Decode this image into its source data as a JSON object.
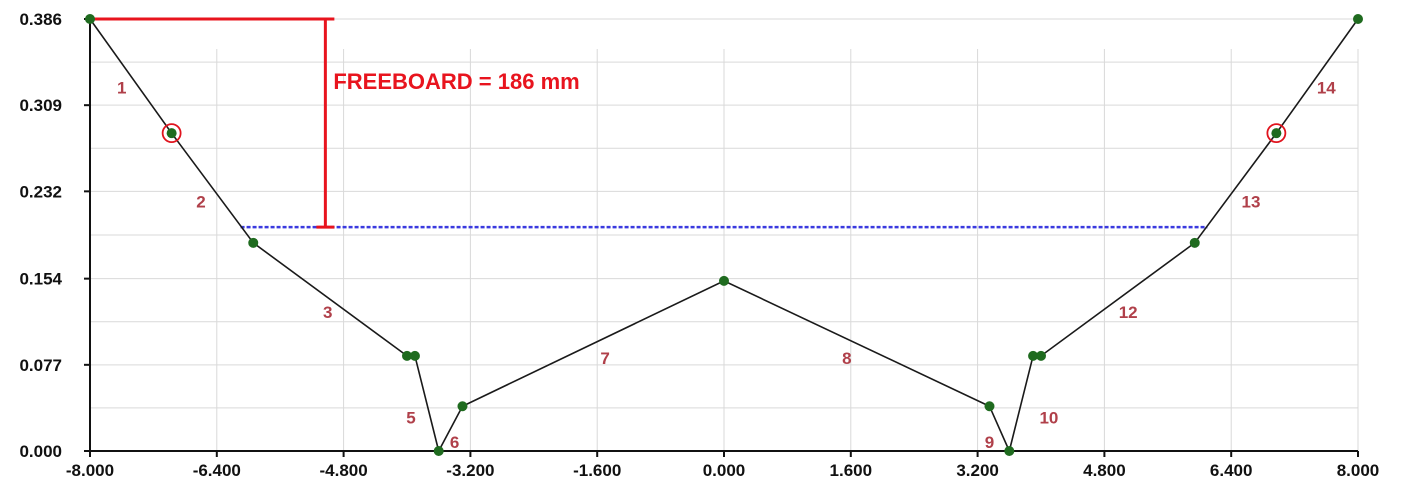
{
  "chart_data": {
    "type": "line",
    "xlim": [
      -8.0,
      8.0
    ],
    "ylim": [
      0.0,
      0.386
    ],
    "x_ticks": [
      -8.0,
      -6.4,
      -4.8,
      -3.2,
      -1.6,
      0.0,
      1.6,
      3.2,
      4.8,
      6.4,
      8.0
    ],
    "x_tick_labels": [
      "-8.000",
      "-6.400",
      "-4.800",
      "-3.200",
      "-1.600",
      "0.000",
      "1.600",
      "3.200",
      "4.800",
      "6.400",
      "8.000"
    ],
    "y_ticks": [
      0.0,
      0.077,
      0.154,
      0.232,
      0.309,
      0.386
    ],
    "y_tick_labels": [
      "0.000",
      "0.077",
      "0.154",
      "0.232",
      "0.309",
      "0.386"
    ],
    "grid": true,
    "profile": {
      "x": [
        -8.0,
        -6.97,
        -5.94,
        -4.0,
        -3.9,
        -3.6,
        -3.3,
        0.0,
        3.35,
        3.6,
        3.9,
        4.0,
        5.94,
        6.97,
        8.0
      ],
      "y": [
        0.386,
        0.284,
        0.186,
        0.085,
        0.085,
        0.0,
        0.04,
        0.152,
        0.04,
        0.0,
        0.085,
        0.085,
        0.186,
        0.284,
        0.386
      ]
    },
    "highlighted_points": [
      {
        "x": -6.97,
        "y": 0.284
      },
      {
        "x": 6.97,
        "y": 0.284
      }
    ],
    "segment_labels": [
      {
        "text": "1",
        "x": -7.6,
        "y": 0.325
      },
      {
        "text": "2",
        "x": -6.6,
        "y": 0.223
      },
      {
        "text": "3",
        "x": -5.0,
        "y": 0.124
      },
      {
        "text": "5",
        "x": -3.95,
        "y": 0.03
      },
      {
        "text": "6",
        "x": -3.4,
        "y": 0.008
      },
      {
        "text": "7",
        "x": -1.5,
        "y": 0.083
      },
      {
        "text": "8",
        "x": 1.55,
        "y": 0.083
      },
      {
        "text": "9",
        "x": 3.35,
        "y": 0.008
      },
      {
        "text": "10",
        "x": 4.1,
        "y": 0.03
      },
      {
        "text": "12",
        "x": 5.1,
        "y": 0.124
      },
      {
        "text": "13",
        "x": 6.65,
        "y": 0.223
      },
      {
        "text": "14",
        "x": 7.6,
        "y": 0.325
      }
    ],
    "water_level": {
      "y": 0.2,
      "x_start": -6.1,
      "x_end": 6.1
    },
    "freeboard": {
      "label": "FREEBOARD = 186 mm",
      "top_y": 0.386,
      "bottom_y": 0.2,
      "x": -5.03,
      "top_line_x_start": -8.0,
      "top_line_x_end": -4.95
    },
    "colors": {
      "profile_line": "#1a1a1a",
      "point": "#1f6b1f",
      "highlight_ring": "#e0141e",
      "water_level": "#3a3adf",
      "freeboard": "#e8141e",
      "segment_label": "#b0404a",
      "grid": "#d9d9d9",
      "axis": "#111111"
    }
  }
}
